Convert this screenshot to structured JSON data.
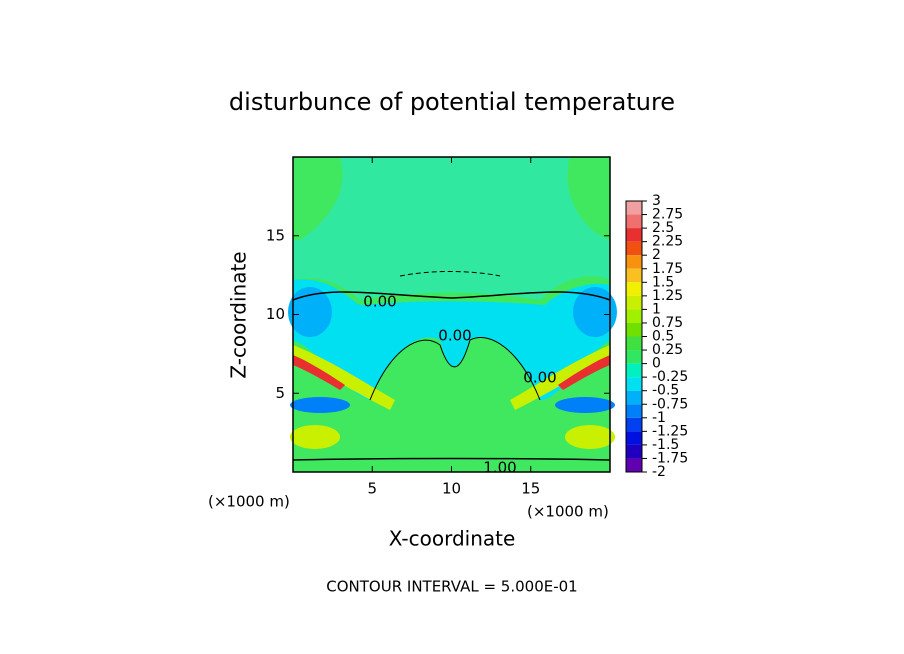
{
  "chart_data": {
    "type": "contour",
    "title": "disturbunce of potential temperature",
    "xlabel": "X-coordinate",
    "ylabel": "Z-coordinate",
    "x_unit": "(×1000 m)",
    "y_unit": "(×1000 m)",
    "footer": "CONTOUR INTERVAL = 5.000E-01",
    "xlim": [
      0,
      20
    ],
    "xticks": [
      5,
      10,
      15
    ],
    "ylim": [
      0,
      20
    ],
    "yticks": [
      5,
      10,
      15
    ],
    "contour_labels": [
      "0.00",
      "0.00",
      "0.00",
      "1.00"
    ],
    "levels": [
      3,
      2.75,
      2.5,
      2.25,
      2,
      1.75,
      1.5,
      1.25,
      1,
      0.75,
      0.5,
      0.25,
      0,
      -0.25,
      -0.5,
      -0.75,
      -1,
      -1.25,
      -1.5,
      -1.75,
      -2
    ],
    "colors": [
      "#f0a0a0",
      "#f07070",
      "#e83030",
      "#f05010",
      "#f89010",
      "#f8c020",
      "#f0f000",
      "#c8f000",
      "#a0f000",
      "#70e000",
      "#40e040",
      "#30e860",
      "#00f0c0",
      "#00e0f0",
      "#00b0f8",
      "#0080f8",
      "#0040f0",
      "#0010e0",
      "#2000c0",
      "#6000b0"
    ]
  }
}
